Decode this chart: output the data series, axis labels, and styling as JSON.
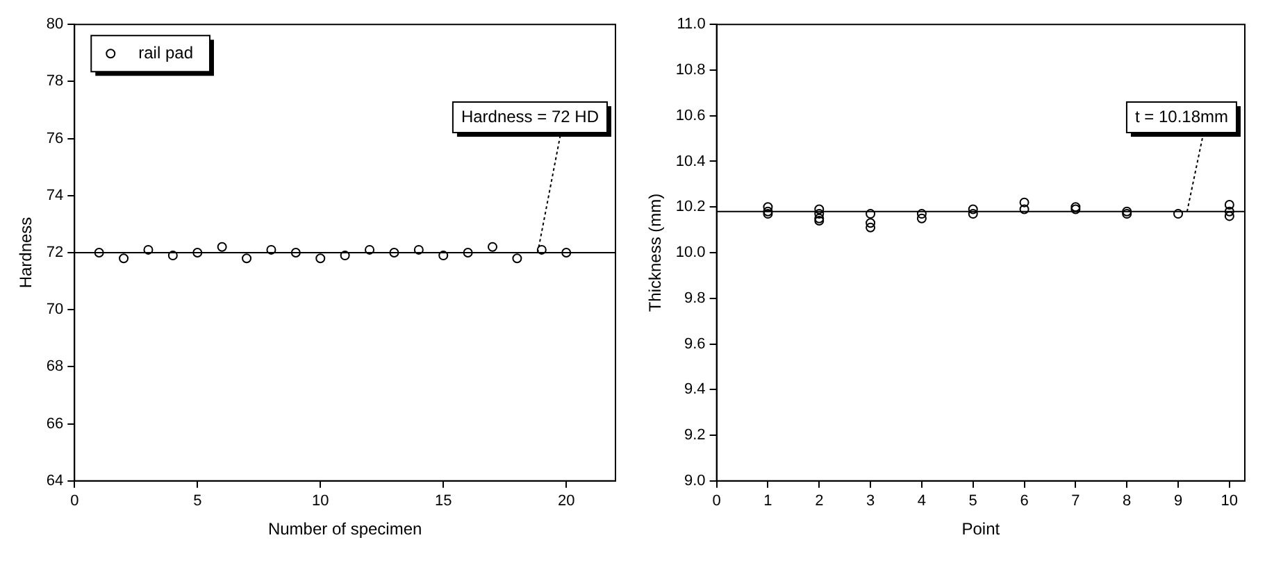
{
  "chart_data": [
    {
      "type": "scatter",
      "xlabel": "Number of specimen",
      "ylabel": "Hardness",
      "x": [
        1,
        2,
        3,
        4,
        5,
        6,
        7,
        8,
        9,
        10,
        11,
        12,
        13,
        14,
        15,
        16,
        17,
        18,
        19,
        20
      ],
      "series": [
        {
          "name": "rail pad",
          "color": "#000000",
          "values": [
            72.0,
            71.8,
            72.1,
            71.9,
            72.0,
            72.2,
            71.8,
            72.1,
            72.0,
            71.8,
            71.9,
            72.1,
            72.0,
            72.1,
            71.9,
            72.0,
            72.2,
            71.8,
            72.1,
            72.0
          ]
        }
      ],
      "xlim": [
        0,
        22
      ],
      "xticks": [
        0,
        5,
        10,
        15,
        20
      ],
      "ylim": [
        64,
        80
      ],
      "yticks": [
        64,
        66,
        68,
        70,
        72,
        74,
        76,
        78,
        80
      ],
      "ref_lines": [
        {
          "axis": "y",
          "value": 72,
          "label": "Hardness = 72 HD",
          "color": "#000000",
          "line_style": "solid"
        }
      ],
      "marker": "circle",
      "grid": false,
      "legend": "top left"
    },
    {
      "type": "scatter",
      "xlabel": "Point",
      "ylabel": "Thickness (mm)",
      "series": [
        {
          "color": "#000000",
          "x": [
            1,
            1,
            1,
            2,
            2,
            2,
            2,
            3,
            3,
            3,
            4,
            4,
            5,
            5,
            6,
            6,
            7,
            7,
            8,
            8,
            9,
            10,
            10,
            10
          ],
          "values": [
            10.2,
            10.18,
            10.17,
            10.19,
            10.17,
            10.15,
            10.14,
            10.17,
            10.13,
            10.11,
            10.17,
            10.15,
            10.19,
            10.17,
            10.22,
            10.19,
            10.2,
            10.19,
            10.18,
            10.17,
            10.17,
            10.21,
            10.18,
            10.16
          ]
        }
      ],
      "xlim": [
        0,
        10.3
      ],
      "xticks": [
        0,
        1,
        2,
        3,
        4,
        5,
        6,
        7,
        8,
        9,
        10
      ],
      "ylim": [
        9.0,
        11.0
      ],
      "yticks": [
        {
          "value": 9.0,
          "label": "9.0"
        },
        {
          "value": 9.2,
          "label": "9.2"
        },
        {
          "value": 9.4,
          "label": "9.4"
        },
        {
          "value": 9.6,
          "label": "9.6"
        },
        {
          "value": 9.8,
          "label": "9.8"
        },
        {
          "value": 10.0,
          "label": "10.0"
        },
        {
          "value": 10.2,
          "label": "10.2"
        },
        {
          "value": 10.4,
          "label": "10.4"
        },
        {
          "value": 10.6,
          "label": "10.6"
        },
        {
          "value": 10.8,
          "label": "10.8"
        },
        {
          "value": 11.0,
          "label": "11.0"
        }
      ],
      "ref_lines": [
        {
          "axis": "y",
          "value": 10.18,
          "label": "t = 10.18mm",
          "color": "#000000",
          "line_style": "solid"
        }
      ],
      "marker": "circle",
      "grid": false
    }
  ]
}
